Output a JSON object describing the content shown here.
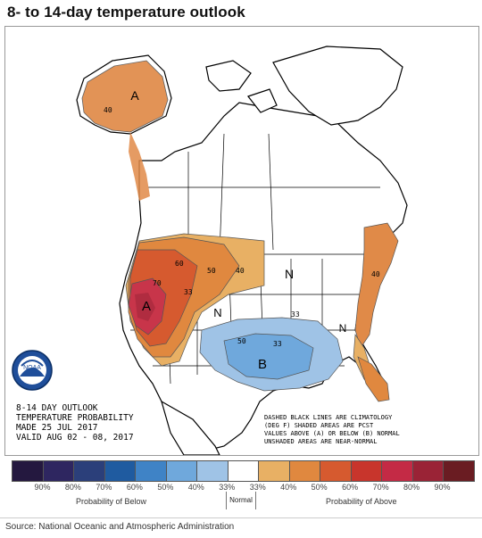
{
  "title": "8- to 14-day temperature outlook",
  "map": {
    "outlook_lines": [
      "8-14 DAY OUTLOOK",
      "TEMPERATURE PROBABILITY",
      "MADE  25 JUL 2017",
      "VALID  AUG 02 - 08, 2017"
    ],
    "note_lines": [
      "DASHED BLACK LINES ARE CLIMATOLOGY",
      "(DEG F) SHADED AREAS ARE PCST",
      "VALUES ABOVE (A) OR BELOW (B) NORMAL",
      "UNSHADED AREAS ARE NEAR-NORMAL"
    ],
    "logo_text": "NOAA",
    "region_labels": {
      "above_alaska": "A",
      "above_west": "A",
      "below_south": "B"
    },
    "normal_labels": [
      "N",
      "N",
      "N"
    ],
    "contour_labels": [
      "50",
      "40",
      "60",
      "70",
      "33",
      "40",
      "33",
      "50",
      "33",
      "40"
    ],
    "colors": {
      "above_light": "#e8a95c",
      "above_mid": "#e07b3f",
      "above_strong": "#cc4a2e",
      "above_deep": "#b93349",
      "below_light": "#9fc3e6",
      "below_mid": "#6fa8dc",
      "land": "#ffffff",
      "outline": "#000000"
    }
  },
  "legend": {
    "colors": [
      "#24183f",
      "#2e2660",
      "#2b3f7a",
      "#1f5ba0",
      "#3f83c6",
      "#6fa8dc",
      "#9fc3e6",
      "#ffffff",
      "#e8b064",
      "#e0883f",
      "#d65a2f",
      "#c8352c",
      "#c42a45",
      "#9a2336",
      "#6a1c22"
    ],
    "labels": [
      "90%",
      "80%",
      "70%",
      "60%",
      "50%",
      "40%",
      "33%",
      "33%",
      "40%",
      "50%",
      "60%",
      "70%",
      "80%",
      "90%"
    ],
    "below_caption": "Probability of Below",
    "normal_caption": "Normal",
    "above_caption": "Probability of Above"
  },
  "source": "Source: National Oceanic and Atmospheric Administration"
}
